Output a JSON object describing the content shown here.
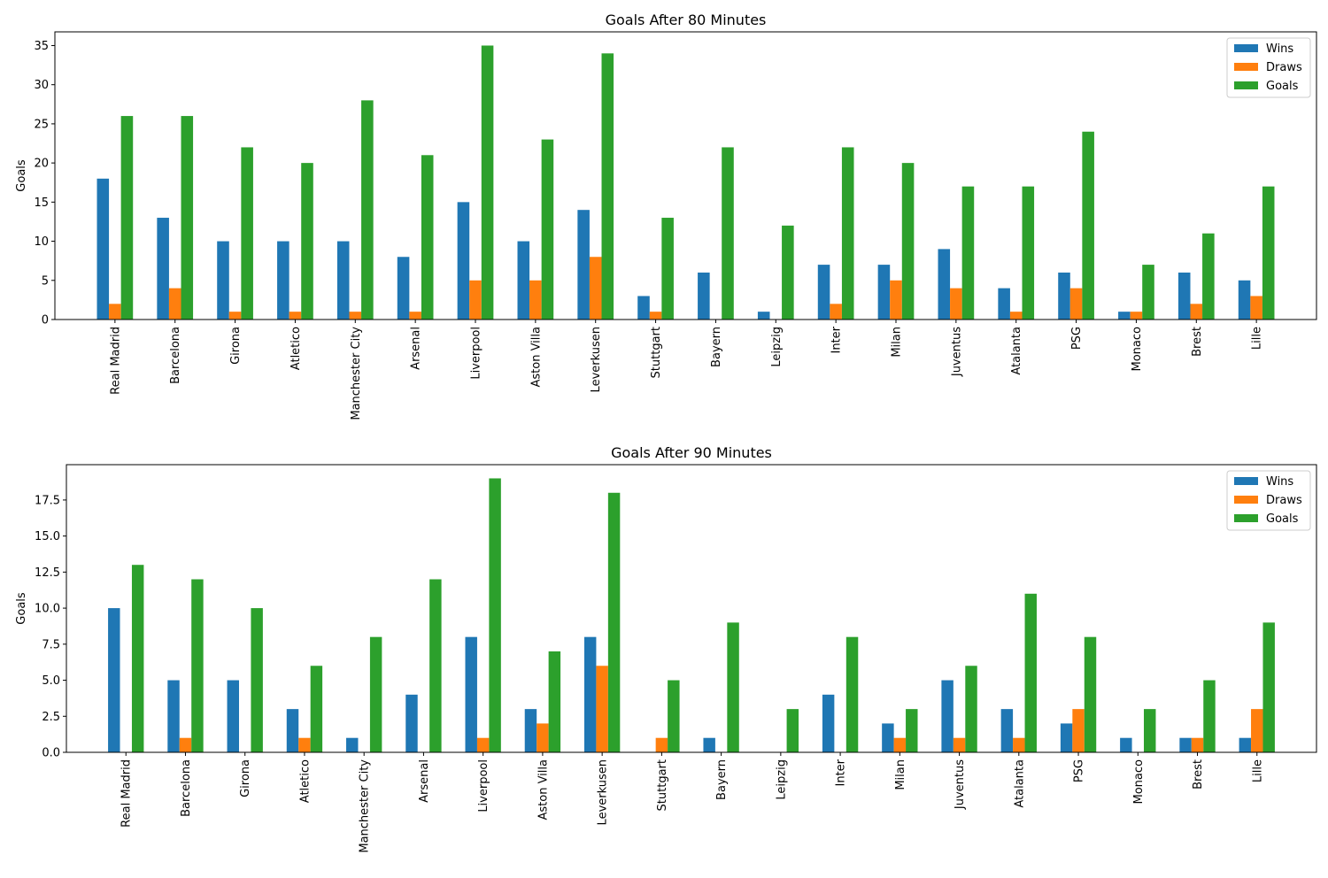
{
  "colors": {
    "wins": "#1f77b4",
    "draws": "#ff7f0e",
    "goals": "#2ca02c"
  },
  "chart_data": [
    {
      "type": "bar",
      "title": "Goals After 80 Minutes",
      "xlabel": "",
      "ylabel": "Goals",
      "ylim": [
        0,
        36.75
      ],
      "yticks": [
        "0",
        "5",
        "10",
        "15",
        "20",
        "25",
        "30",
        "35"
      ],
      "legend_position": "top-right",
      "grid": false,
      "categories": [
        "Real Madrid",
        "Barcelona",
        "Girona",
        "Atletico",
        "Manchester City",
        "Arsenal",
        "Liverpool",
        "Aston Villa",
        "Leverkusen",
        "Stuttgart",
        "Bayern",
        "Leipzig",
        "Inter",
        "Milan",
        "Juventus",
        "Atalanta",
        "PSG",
        "Monaco",
        "Brest",
        "Lille"
      ],
      "series": [
        {
          "name": "Wins",
          "values": [
            18,
            13,
            10,
            10,
            10,
            8,
            15,
            10,
            14,
            3,
            6,
            1,
            7,
            7,
            9,
            4,
            6,
            1,
            6,
            5
          ]
        },
        {
          "name": "Draws",
          "values": [
            2,
            4,
            1,
            1,
            1,
            1,
            5,
            5,
            8,
            1,
            0,
            0,
            2,
            5,
            4,
            1,
            4,
            1,
            2,
            3
          ]
        },
        {
          "name": "Goals",
          "values": [
            26,
            26,
            22,
            20,
            28,
            21,
            35,
            23,
            34,
            13,
            22,
            12,
            22,
            20,
            17,
            17,
            24,
            7,
            11,
            17
          ]
        }
      ]
    },
    {
      "type": "bar",
      "title": "Goals After 90 Minutes",
      "xlabel": "",
      "ylabel": "Goals",
      "ylim": [
        0,
        19.95
      ],
      "yticks": [
        "0.0",
        "2.5",
        "5.0",
        "7.5",
        "10.0",
        "12.5",
        "15.0",
        "17.5"
      ],
      "legend_position": "top-right",
      "grid": false,
      "categories": [
        "Real Madrid",
        "Barcelona",
        "Girona",
        "Atletico",
        "Manchester City",
        "Arsenal",
        "Liverpool",
        "Aston Villa",
        "Leverkusen",
        "Stuttgart",
        "Bayern",
        "Leipzig",
        "Inter",
        "Milan",
        "Juventus",
        "Atalanta",
        "PSG",
        "Monaco",
        "Brest",
        "Lille"
      ],
      "series": [
        {
          "name": "Wins",
          "values": [
            10,
            5,
            5,
            3,
            1,
            4,
            8,
            3,
            8,
            0,
            1,
            0,
            4,
            2,
            5,
            3,
            2,
            1,
            1,
            1
          ]
        },
        {
          "name": "Draws",
          "values": [
            0,
            1,
            0,
            1,
            0,
            0,
            1,
            2,
            6,
            1,
            0,
            0,
            0,
            1,
            1,
            1,
            3,
            0,
            1,
            3
          ]
        },
        {
          "name": "Goals",
          "values": [
            13,
            12,
            10,
            6,
            8,
            12,
            19,
            7,
            18,
            5,
            9,
            3,
            8,
            3,
            6,
            11,
            8,
            3,
            5,
            9
          ]
        }
      ]
    }
  ]
}
